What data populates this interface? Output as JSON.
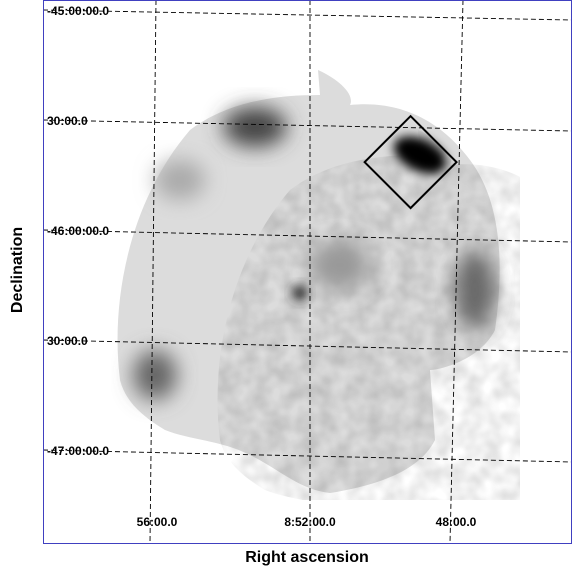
{
  "axes": {
    "x_title": "Right ascension",
    "y_title": "Declination",
    "x_ticks": [
      "56:00.0",
      "8:52:00.0",
      "48:00.0"
    ],
    "y_ticks": [
      "-45:00:00.0",
      "30:00.0",
      "-46:00:00.0",
      "30:00.0",
      "-47:00:00.0"
    ]
  }
}
